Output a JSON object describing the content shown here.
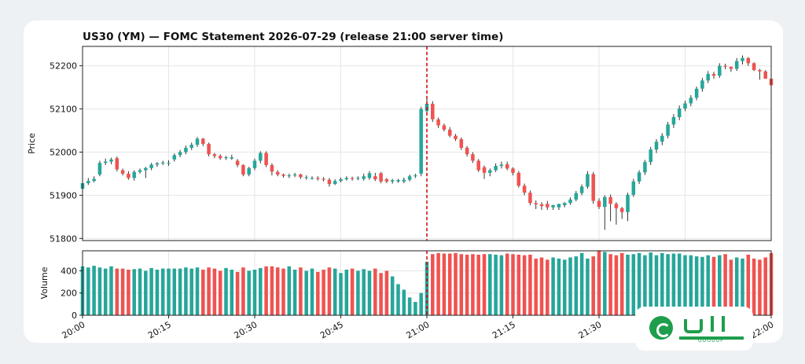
{
  "chart_data": {
    "type": "candlestick",
    "title": "US30 (YM) — FOMC Statement 2026-07-29 (release 21:00 server time)",
    "price_panel": {
      "ylabel": "Price",
      "ylim": [
        51795,
        52245
      ],
      "yticks": [
        "51800",
        "51900",
        "52000",
        "52100",
        "52200"
      ],
      "ytick_values": [
        51800,
        51900,
        52000,
        52100,
        52200
      ],
      "grid": true
    },
    "volume_panel": {
      "ylabel": "Volume",
      "ylim": [
        0,
        580
      ],
      "yticks": [
        "0",
        "200",
        "400"
      ],
      "ytick_values": [
        0,
        200,
        400
      ],
      "grid": true
    },
    "x_axis": {
      "tick_labels": [
        "20:00",
        "20:15",
        "20:30",
        "20:45",
        "21:00",
        "21:15",
        "21:30",
        "21:45",
        "22:00"
      ],
      "tick_minutes": [
        0,
        15,
        30,
        45,
        60,
        75,
        90,
        105,
        120
      ],
      "tick_rotation": 30
    },
    "event_marker": {
      "minute": 60,
      "color": "#cc0000",
      "style": "dashed"
    },
    "up_color": "#26a69a",
    "down_color": "#ef5350",
    "candles": {
      "minute": [
        0,
        1,
        2,
        3,
        4,
        5,
        6,
        7,
        8,
        9,
        10,
        11,
        12,
        13,
        14,
        15,
        16,
        17,
        18,
        19,
        20,
        21,
        22,
        23,
        24,
        25,
        26,
        27,
        28,
        29,
        30,
        31,
        32,
        33,
        34,
        35,
        36,
        37,
        38,
        39,
        40,
        41,
        42,
        43,
        44,
        45,
        46,
        47,
        48,
        49,
        50,
        51,
        52,
        53,
        54,
        55,
        56,
        57,
        58,
        59,
        60,
        61,
        62,
        63,
        64,
        65,
        66,
        67,
        68,
        69,
        70,
        71,
        72,
        73,
        74,
        75,
        76,
        77,
        78,
        79,
        80,
        81,
        82,
        83,
        84,
        85,
        86,
        87,
        88,
        89,
        90,
        91,
        92,
        93,
        94,
        95,
        96,
        97,
        98,
        99,
        100,
        101,
        102,
        103,
        104,
        105,
        106,
        107,
        108,
        109,
        110,
        111,
        112,
        113,
        114,
        115,
        116,
        117,
        118,
        119,
        120
      ],
      "open": [
        51915,
        51928,
        51933,
        51948,
        51975,
        51978,
        51986,
        51958,
        51950,
        51940,
        51954,
        51958,
        51963,
        51971,
        51974,
        51975,
        51983,
        51993,
        52000,
        52010,
        52017,
        52031,
        52019,
        51995,
        51991,
        51988,
        51985,
        51980,
        51970,
        51948,
        51963,
        51980,
        51998,
        51970,
        51954,
        51948,
        51946,
        51946,
        51948,
        51942,
        51940,
        51940,
        51938,
        51936,
        51926,
        51933,
        51937,
        51940,
        51940,
        51938,
        51940,
        51944,
        51951,
        51937,
        51932,
        51932,
        51932,
        51936,
        51944,
        51950,
        52095,
        52112,
        52076,
        52062,
        52052,
        52038,
        52030,
        52010,
        51995,
        51980,
        51965,
        51952,
        51958,
        51968,
        51972,
        51962,
        51952,
        51922,
        51906,
        51882,
        51879,
        51880,
        51872,
        51872,
        51877,
        51882,
        51890,
        51905,
        51920,
        51949,
        51887,
        51873,
        51896,
        51880,
        51870,
        51861,
        51901,
        51932,
        51953,
        51977,
        52006,
        52024,
        52038,
        52064,
        52081,
        52101,
        52113,
        52126,
        52147,
        52166,
        52181,
        52177,
        52200,
        52198,
        52193,
        52211,
        52218,
        52206,
        52190,
        52187,
        52170
      ],
      "close": [
        51928,
        51933,
        51938,
        51975,
        51978,
        51983,
        51960,
        51950,
        51940,
        51954,
        51958,
        51963,
        51971,
        51974,
        51976,
        51975,
        51993,
        52000,
        52010,
        52017,
        52031,
        52019,
        51995,
        51991,
        51986,
        51988,
        51988,
        51970,
        51948,
        51963,
        51980,
        51998,
        51970,
        51955,
        51948,
        51945,
        51946,
        51948,
        51942,
        51942,
        51940,
        51938,
        51936,
        51926,
        51933,
        51937,
        51940,
        51938,
        51940,
        51944,
        51951,
        51937,
        51932,
        51932,
        51935,
        51935,
        51936,
        51944,
        51946,
        52100,
        52112,
        52076,
        52062,
        52052,
        52038,
        52030,
        52010,
        51995,
        51980,
        51958,
        51952,
        51958,
        51968,
        51971,
        51962,
        51952,
        51922,
        51906,
        51882,
        51879,
        51875,
        51872,
        51877,
        51880,
        51882,
        51890,
        51905,
        51920,
        51949,
        51887,
        51873,
        51896,
        51880,
        51870,
        51861,
        51901,
        51932,
        51953,
        51977,
        52006,
        52024,
        52038,
        52064,
        52081,
        52101,
        52113,
        52126,
        52147,
        52166,
        52181,
        52177,
        52200,
        52198,
        52193,
        52211,
        52218,
        52206,
        52190,
        52187,
        52170,
        52155
      ],
      "high": [
        51934,
        51940,
        51944,
        51980,
        51985,
        51987,
        51990,
        51962,
        51956,
        51958,
        51962,
        51966,
        51975,
        51977,
        51980,
        51981,
        51997,
        52005,
        52015,
        52022,
        52035,
        52033,
        52022,
        51998,
        51995,
        51991,
        51994,
        51984,
        51972,
        51966,
        51985,
        52002,
        52002,
        51974,
        51958,
        51950,
        51950,
        51952,
        51950,
        51946,
        51944,
        51944,
        51942,
        51940,
        51937,
        51941,
        51944,
        51943,
        51944,
        51950,
        51956,
        51952,
        51954,
        51940,
        51938,
        51938,
        51941,
        51948,
        51950,
        52105,
        52128,
        52118,
        52080,
        52066,
        52058,
        52042,
        52034,
        52014,
        52000,
        51984,
        51969,
        51962,
        51974,
        51978,
        51978,
        51965,
        51956,
        51927,
        51911,
        51888,
        51884,
        51887,
        51878,
        51880,
        51884,
        51895,
        51910,
        51925,
        51956,
        51954,
        51893,
        51900,
        51902,
        51884,
        51873,
        51906,
        51938,
        51958,
        51982,
        52012,
        52030,
        52044,
        52070,
        52088,
        52108,
        52119,
        52132,
        52152,
        52172,
        52188,
        52186,
        52206,
        52205,
        52198,
        52218,
        52224,
        52220,
        52208,
        52193,
        52190,
        52175
      ],
      "low": [
        51910,
        51924,
        51930,
        51944,
        51970,
        51972,
        51955,
        51946,
        51936,
        51934,
        51950,
        51940,
        51958,
        51966,
        51970,
        51968,
        51978,
        51988,
        51995,
        52005,
        52012,
        52014,
        51990,
        51986,
        51982,
        51982,
        51982,
        51965,
        51944,
        51944,
        51958,
        51974,
        51965,
        51946,
        51944,
        51941,
        51940,
        51942,
        51938,
        51936,
        51936,
        51934,
        51932,
        51920,
        51924,
        51930,
        51934,
        51934,
        51935,
        51934,
        51936,
        51933,
        51928,
        51928,
        51927,
        51929,
        51928,
        51932,
        51940,
        51944,
        52085,
        52070,
        52056,
        52048,
        52034,
        52026,
        52005,
        51990,
        51975,
        51954,
        51938,
        51944,
        51954,
        51962,
        51958,
        51946,
        51918,
        51900,
        51877,
        51868,
        51866,
        51866,
        51866,
        51866,
        51872,
        51878,
        51886,
        51900,
        51915,
        51880,
        51868,
        51820,
        51840,
        51832,
        51845,
        51840,
        51896,
        51926,
        51947,
        51970,
        51998,
        52016,
        52032,
        52056,
        52074,
        52095,
        52106,
        52120,
        52140,
        52160,
        52170,
        52172,
        52192,
        52186,
        52188,
        52203,
        52200,
        52188,
        52168,
        52178,
        52150
      ],
      "volume": [
        440,
        430,
        445,
        430,
        420,
        440,
        420,
        420,
        410,
        415,
        420,
        400,
        425,
        410,
        420,
        420,
        420,
        420,
        430,
        420,
        430,
        410,
        430,
        420,
        400,
        425,
        410,
        390,
        430,
        400,
        410,
        425,
        440,
        440,
        430,
        420,
        440,
        410,
        430,
        400,
        420,
        390,
        410,
        430,
        420,
        380,
        410,
        420,
        400,
        415,
        400,
        420,
        380,
        400,
        350,
        280,
        230,
        160,
        120,
        200,
        480,
        550,
        560,
        555,
        555,
        560,
        550,
        545,
        550,
        545,
        550,
        550,
        545,
        540,
        555,
        550,
        545,
        540,
        545,
        510,
        520,
        500,
        520,
        510,
        500,
        520,
        530,
        560,
        510,
        530,
        580,
        570,
        550,
        540,
        560,
        545,
        550,
        560,
        540,
        565,
        540,
        560,
        550,
        555,
        555,
        540,
        540,
        530,
        525,
        540,
        525,
        540,
        550,
        500,
        520,
        510,
        545,
        510,
        500,
        520,
        560
      ]
    }
  },
  "watermark": {
    "text": "GOODUP"
  }
}
